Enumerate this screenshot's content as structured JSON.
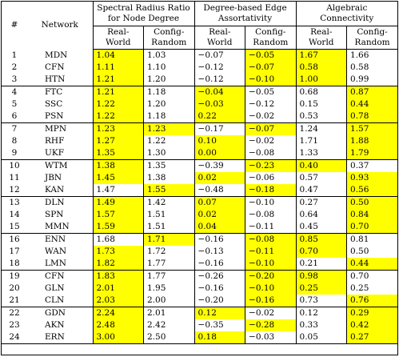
{
  "header": {
    "num": "#",
    "network": "Network",
    "groups": [
      {
        "line1": "Spectral Radius Ratio",
        "line2": "for Node Degree"
      },
      {
        "line1": "Degree-based Edge",
        "line2": "Assortativity"
      },
      {
        "line1": "Algebraic",
        "line2": "Connectivity"
      }
    ],
    "sub": [
      {
        "line1": "Real-",
        "line2": "World"
      },
      {
        "line1": "Config-",
        "line2": "Random"
      },
      {
        "line1": "Real-",
        "line2": "World"
      },
      {
        "line1": "Config-",
        "line2": "Random"
      },
      {
        "line1": "Real-",
        "line2": "World"
      },
      {
        "line1": "Config-",
        "line2": "Random"
      }
    ]
  },
  "highlight_color": "#ffff00",
  "rows": [
    {
      "n": "1",
      "net": "MDN",
      "v": [
        "1.04",
        "1.03",
        "−0.07",
        "−0.05",
        "1.67",
        "1.66"
      ],
      "h": [
        1,
        0,
        0,
        1,
        1,
        0
      ]
    },
    {
      "n": "2",
      "net": "CFN",
      "v": [
        "1.11",
        "1.10",
        "−0.12",
        "−0.07",
        "0.58",
        "0.58"
      ],
      "h": [
        1,
        0,
        0,
        1,
        1,
        0
      ]
    },
    {
      "n": "3",
      "net": "HTN",
      "v": [
        "1.21",
        "1.20",
        "−0.12",
        "−0.10",
        "1.00",
        "0.99"
      ],
      "h": [
        1,
        0,
        0,
        1,
        1,
        0
      ]
    },
    {
      "n": "4",
      "net": "FTC",
      "v": [
        "1.21",
        "1.18",
        "−0.04",
        "−0.05",
        "0.68",
        "0.87"
      ],
      "h": [
        1,
        0,
        1,
        0,
        0,
        1
      ]
    },
    {
      "n": "5",
      "net": "SSC",
      "v": [
        "1.22",
        "1.20",
        "−0.03",
        "−0.12",
        "0.15",
        "0.44"
      ],
      "h": [
        1,
        0,
        1,
        0,
        0,
        1
      ]
    },
    {
      "n": "6",
      "net": "PSN",
      "v": [
        "1.22",
        "1.18",
        "0.22",
        "−0.02",
        "0.53",
        "0.78"
      ],
      "h": [
        1,
        0,
        1,
        0,
        0,
        1
      ]
    },
    {
      "n": "7",
      "net": "MPN",
      "v": [
        "1.23",
        "1.23",
        "−0.17",
        "−0.07",
        "1.24",
        "1.57"
      ],
      "h": [
        1,
        1,
        0,
        1,
        0,
        1
      ]
    },
    {
      "n": "8",
      "net": "RHF",
      "v": [
        "1.27",
        "1.22",
        "0.10",
        "−0.02",
        "1.71",
        "1.88"
      ],
      "h": [
        1,
        0,
        1,
        0,
        0,
        1
      ]
    },
    {
      "n": "9",
      "net": "UKF",
      "v": [
        "1.35",
        "1.30",
        "0.00",
        "−0.08",
        "1.33",
        "1.79"
      ],
      "h": [
        1,
        0,
        1,
        0,
        0,
        1
      ]
    },
    {
      "n": "10",
      "net": "WTM",
      "v": [
        "1.38",
        "1.35",
        "−0.39",
        "−0.23",
        "0.40",
        "0.37"
      ],
      "h": [
        1,
        0,
        0,
        1,
        1,
        0
      ]
    },
    {
      "n": "11",
      "net": "JBN",
      "v": [
        "1.45",
        "1.38",
        "0.02",
        "−0.06",
        "0.57",
        "0.93"
      ],
      "h": [
        1,
        0,
        1,
        0,
        0,
        1
      ]
    },
    {
      "n": "12",
      "net": "KAN",
      "v": [
        "1.47",
        "1.55",
        "−0.48",
        "−0.18",
        "0.47",
        "0.56"
      ],
      "h": [
        0,
        1,
        0,
        1,
        0,
        1
      ]
    },
    {
      "n": "13",
      "net": "DLN",
      "v": [
        "1.49",
        "1.42",
        "0.07",
        "−0.10",
        "0.27",
        "0.50"
      ],
      "h": [
        1,
        0,
        1,
        0,
        0,
        1
      ]
    },
    {
      "n": "14",
      "net": "SPN",
      "v": [
        "1.57",
        "1.51",
        "0.02",
        "−0.08",
        "0.64",
        "0.84"
      ],
      "h": [
        1,
        0,
        1,
        0,
        0,
        1
      ]
    },
    {
      "n": "15",
      "net": "MMN",
      "v": [
        "1.59",
        "1.51",
        "0.04",
        "−0.11",
        "0.45",
        "0.70"
      ],
      "h": [
        1,
        0,
        1,
        0,
        0,
        1
      ]
    },
    {
      "n": "16",
      "net": "ENN",
      "v": [
        "1.68",
        "1.71",
        "−0.16",
        "−0.08",
        "0.85",
        "0.81"
      ],
      "h": [
        0,
        1,
        0,
        1,
        1,
        0
      ]
    },
    {
      "n": "17",
      "net": "WAN",
      "v": [
        "1.73",
        "1.72",
        "−0.13",
        "−0.11",
        "0.70",
        "0.50"
      ],
      "h": [
        1,
        0,
        0,
        1,
        1,
        0
      ]
    },
    {
      "n": "18",
      "net": "LMN",
      "v": [
        "1.82",
        "1.77",
        "−0.16",
        "−0.10",
        "0.21",
        "0.44"
      ],
      "h": [
        1,
        0,
        0,
        1,
        0,
        1
      ]
    },
    {
      "n": "19",
      "net": "CFN",
      "v": [
        "1.83",
        "1.77",
        "−0.26",
        "−0.20",
        "0.98",
        "0.70"
      ],
      "h": [
        1,
        0,
        0,
        1,
        1,
        0
      ]
    },
    {
      "n": "20",
      "net": "GLN",
      "v": [
        "2.01",
        "1.95",
        "−0.16",
        "−0.10",
        "0.25",
        "0.25"
      ],
      "h": [
        1,
        0,
        0,
        1,
        1,
        0
      ]
    },
    {
      "n": "21",
      "net": "CLN",
      "v": [
        "2.03",
        "2.00",
        "−0.20",
        "−0.16",
        "0.73",
        "0.76"
      ],
      "h": [
        1,
        0,
        0,
        1,
        0,
        1
      ]
    },
    {
      "n": "22",
      "net": "GDN",
      "v": [
        "2.24",
        "2.01",
        "0.12",
        "−0.02",
        "0.12",
        "0.29"
      ],
      "h": [
        1,
        0,
        1,
        0,
        0,
        1
      ]
    },
    {
      "n": "23",
      "net": "AKN",
      "v": [
        "2.48",
        "2.42",
        "−0.35",
        "−0.28",
        "0.33",
        "0.42"
      ],
      "h": [
        1,
        0,
        0,
        1,
        0,
        1
      ]
    },
    {
      "n": "24",
      "net": "ERN",
      "v": [
        "3.00",
        "2.50",
        "0.18",
        "−0.03",
        "0.05",
        "0.27"
      ],
      "h": [
        1,
        0,
        1,
        0,
        0,
        1
      ]
    }
  ]
}
